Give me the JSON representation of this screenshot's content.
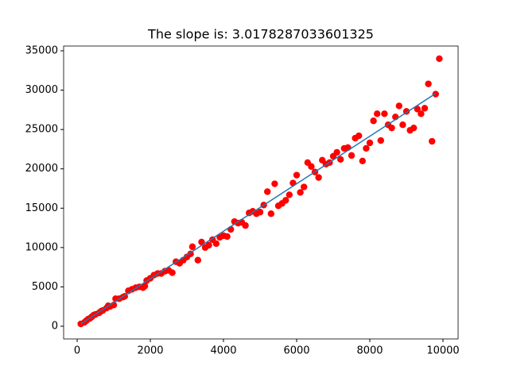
{
  "chart_data": {
    "type": "scatter",
    "title": "The slope is: 3.0178287033601325",
    "scatter": {
      "color": "#ff0000",
      "x": [
        100,
        200,
        250,
        300,
        350,
        400,
        450,
        500,
        600,
        650,
        700,
        800,
        850,
        900,
        1000,
        1050,
        1150,
        1250,
        1300,
        1400,
        1500,
        1600,
        1700,
        1800,
        1850,
        1900,
        2000,
        2100,
        2200,
        2300,
        2400,
        2500,
        2600,
        2700,
        2800,
        2900,
        3000,
        3100,
        3150,
        3300,
        3400,
        3500,
        3600,
        3700,
        3800,
        3900,
        4000,
        4100,
        4200,
        4300,
        4400,
        4500,
        4600,
        4700,
        4800,
        4900,
        5000,
        5100,
        5200,
        5300,
        5400,
        5500,
        5600,
        5700,
        5800,
        5900,
        6000,
        6100,
        6200,
        6300,
        6400,
        6500,
        6600,
        6700,
        6800,
        6900,
        7000,
        7100,
        7200,
        7300,
        7400,
        7500,
        7600,
        7700,
        7800,
        7900,
        8000,
        8100,
        8200,
        8300,
        8400,
        8500,
        8600,
        8700,
        8800,
        8900,
        9000,
        9100,
        9200,
        9300,
        9400,
        9500,
        9600,
        9700,
        9800,
        9900
      ],
      "y": [
        300,
        500,
        700,
        900,
        1000,
        1200,
        1400,
        1500,
        1700,
        1900,
        2000,
        2300,
        2600,
        2500,
        2700,
        3500,
        3500,
        3700,
        3800,
        4500,
        4700,
        4900,
        5000,
        4900,
        5100,
        5800,
        6100,
        6500,
        6700,
        6700,
        7000,
        7100,
        6800,
        8200,
        8000,
        8400,
        8800,
        9200,
        10100,
        8400,
        10700,
        10000,
        10300,
        11000,
        10500,
        11300,
        11500,
        11400,
        12300,
        13300,
        13100,
        13200,
        12800,
        14400,
        14600,
        14300,
        14500,
        15400,
        17100,
        14300,
        18100,
        15300,
        15600,
        16000,
        16700,
        18200,
        19200,
        17000,
        17700,
        20800,
        20300,
        19600,
        18900,
        21100,
        20600,
        20800,
        21600,
        22100,
        21200,
        22600,
        22700,
        21700,
        23900,
        24200,
        21000,
        22600,
        23300,
        26100,
        27000,
        23600,
        27000,
        25600,
        25200,
        26600,
        28000,
        25600,
        27300,
        24900,
        25200,
        27600,
        27000,
        27700,
        30800,
        23500,
        29500,
        34000
      ]
    },
    "line": {
      "color": "#1f77b4",
      "x": [
        100,
        9800
      ],
      "y": [
        302,
        29575
      ]
    },
    "xlim": [
      -370,
      10413
    ],
    "ylim": [
      -1614,
      35606
    ],
    "xticks": [
      0,
      2000,
      4000,
      6000,
      8000,
      10000
    ],
    "yticks": [
      0,
      5000,
      10000,
      15000,
      20000,
      25000,
      30000,
      35000
    ]
  }
}
